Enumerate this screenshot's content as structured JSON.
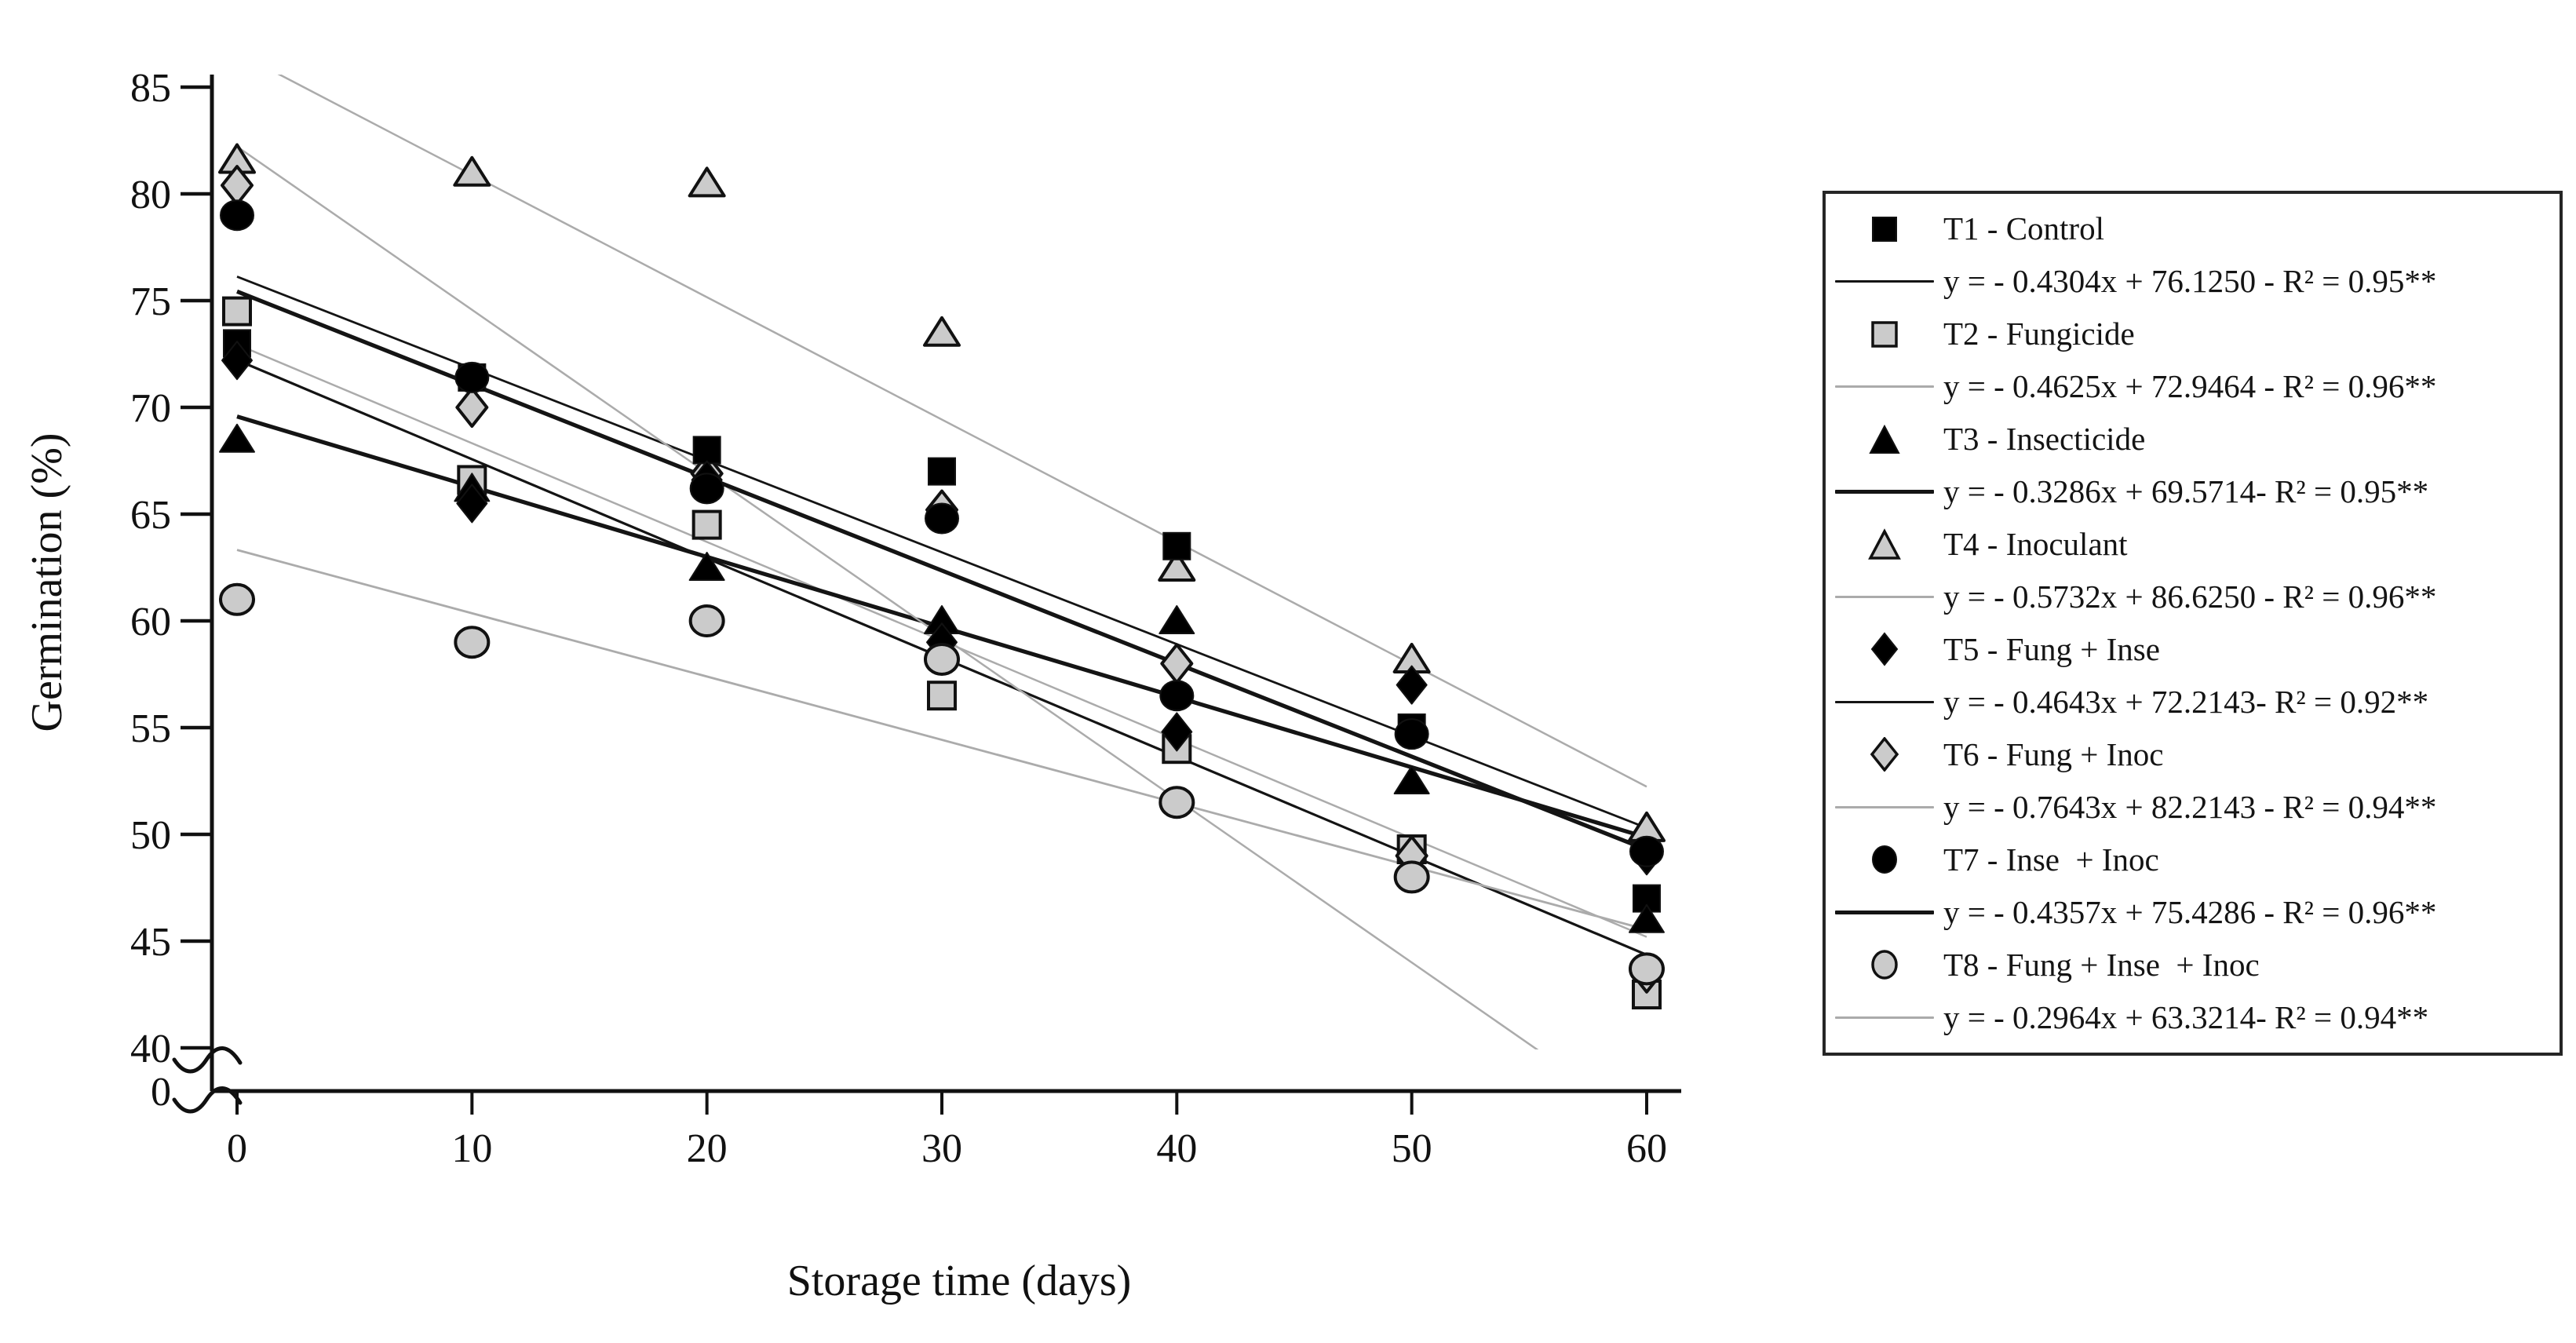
{
  "chart_data": {
    "type": "scatter",
    "title": "",
    "xlabel": "Storage time (days)",
    "ylabel": "Germination (%)",
    "x_ticks": [
      0,
      10,
      20,
      30,
      40,
      50,
      60
    ],
    "y_ticks": [
      85,
      80,
      75,
      70,
      65,
      60,
      55,
      50,
      45,
      40
    ],
    "y_break_label": "0",
    "ylim": [
      40,
      85
    ],
    "xlim": [
      0,
      60
    ],
    "grid": false,
    "legend_position": "right",
    "x": [
      0,
      10,
      20,
      30,
      40,
      50,
      60
    ],
    "colors": {
      "black_marker": "#000000",
      "gray_marker_fill": "#cbcbcb",
      "marker_stroke": "#111111",
      "black_line": "#141414",
      "gray_line": "#ababab",
      "axis": "#111111",
      "legend_border": "#262626",
      "background": "#ffffff"
    },
    "series": [
      {
        "id": "T1",
        "label": "T1 - Control",
        "equation": "y = - 0.4304x + 76.1250 - R² = 0.95**",
        "marker": "square",
        "tone": "black",
        "slope": -0.4304,
        "intercept": 76.125,
        "line_width": 2.8,
        "values": [
          73,
          71.4,
          68,
          67,
          63.5,
          55,
          47
        ]
      },
      {
        "id": "T2",
        "label": "T2 - Fungicide",
        "equation": "y = - 0.4625x + 72.9464 - R² = 0.96**",
        "marker": "square",
        "tone": "gray",
        "slope": -0.4625,
        "intercept": 72.9464,
        "line_width": 2.5,
        "values": [
          74.5,
          66.6,
          64.5,
          56.5,
          54.0,
          49.3,
          42.5
        ]
      },
      {
        "id": "T3",
        "label": "T3 - Insecticide",
        "equation": "y = - 0.3286x + 69.5714- R² = 0.95**",
        "marker": "triangle",
        "tone": "black",
        "slope": -0.3286,
        "intercept": 69.5714,
        "line_width": 5.2,
        "values": [
          68.5,
          66.2,
          62.5,
          60,
          60,
          52.5,
          46
        ]
      },
      {
        "id": "T4",
        "label": "T4 - Inoculant",
        "equation": "y = - 0.5732x + 86.6250 - R² = 0.96**",
        "marker": "triangle",
        "tone": "gray",
        "slope": -0.5732,
        "intercept": 86.625,
        "line_width": 2.5,
        "values": [
          81.6,
          81,
          80.5,
          73.5,
          62.5,
          58.2,
          50.3
        ]
      },
      {
        "id": "T5",
        "label": "T5 - Fung + Inse",
        "equation": "y = - 0.4643x + 72.2143- R² = 0.92**",
        "marker": "diamond",
        "tone": "black",
        "slope": -0.4643,
        "intercept": 72.2143,
        "line_width": 3.2,
        "values": [
          72.2,
          65.5,
          66.6,
          59,
          54.8,
          57,
          49
        ]
      },
      {
        "id": "T6",
        "label": "T6 - Fung + Inoc",
        "equation": "y = - 0.7643x + 82.2143 - R² = 0.94**",
        "marker": "diamond",
        "tone": "gray",
        "slope": -0.7643,
        "intercept": 82.2143,
        "line_width": 2.5,
        "values": [
          80.4,
          70,
          66.9,
          65.2,
          58,
          49,
          43.5
        ]
      },
      {
        "id": "T7",
        "label": "T7 - Inse  + Inoc",
        "equation": "y = - 0.4357x + 75.4286 - R² = 0.96**",
        "marker": "circle",
        "tone": "black",
        "slope": -0.4357,
        "intercept": 75.4286,
        "line_width": 5.2,
        "values": [
          79,
          71.4,
          66.2,
          64.8,
          56.5,
          54.7,
          49.2
        ]
      },
      {
        "id": "T8",
        "label": "T8 - Fung + Inse  + Inoc",
        "equation": "y = - 0.2964x + 63.3214- R² = 0.94**",
        "marker": "circle",
        "tone": "gray",
        "slope": -0.2964,
        "intercept": 63.3214,
        "line_width": 2.8,
        "values": [
          61,
          59,
          60,
          58.2,
          51.5,
          48,
          43.7
        ]
      }
    ]
  }
}
